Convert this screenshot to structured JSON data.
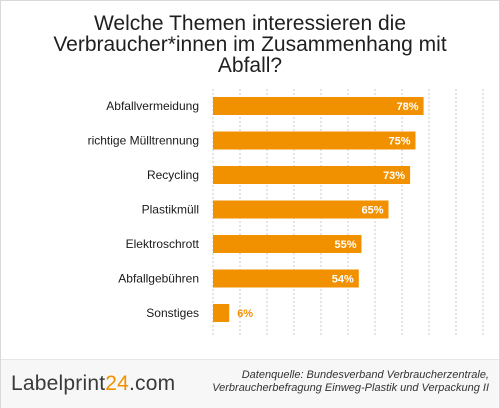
{
  "chart_data": {
    "type": "bar",
    "orientation": "horizontal",
    "title_lines": [
      "Welche Themen interessieren die",
      "Verbraucher*innen im Zusammenhang mit",
      "Abfall?"
    ],
    "categories": [
      "Abfallvermeidung",
      "richtige Mülltrennung",
      "Recycling",
      "Plastikmüll",
      "Elektroschrott",
      "Abfallgebühren",
      "Sonstiges"
    ],
    "values": [
      78,
      75,
      73,
      65,
      55,
      54,
      6
    ],
    "value_labels": [
      "78%",
      "75%",
      "73%",
      "65%",
      "55%",
      "54%",
      "6%"
    ],
    "xlim": [
      0,
      100
    ],
    "grid": true,
    "bar_color": "#f29100",
    "label_inside_color": "#ffffff",
    "label_outside_color": "#f29100"
  },
  "footer": {
    "logo_text": "Labelprint",
    "logo_accent": "24",
    "logo_suffix": ".com",
    "source_lines": [
      "Datenquelle: Bundesverband Verbraucherzentrale,",
      "Verbraucherbefragung Einweg-Plastik und Verpackung II"
    ]
  }
}
